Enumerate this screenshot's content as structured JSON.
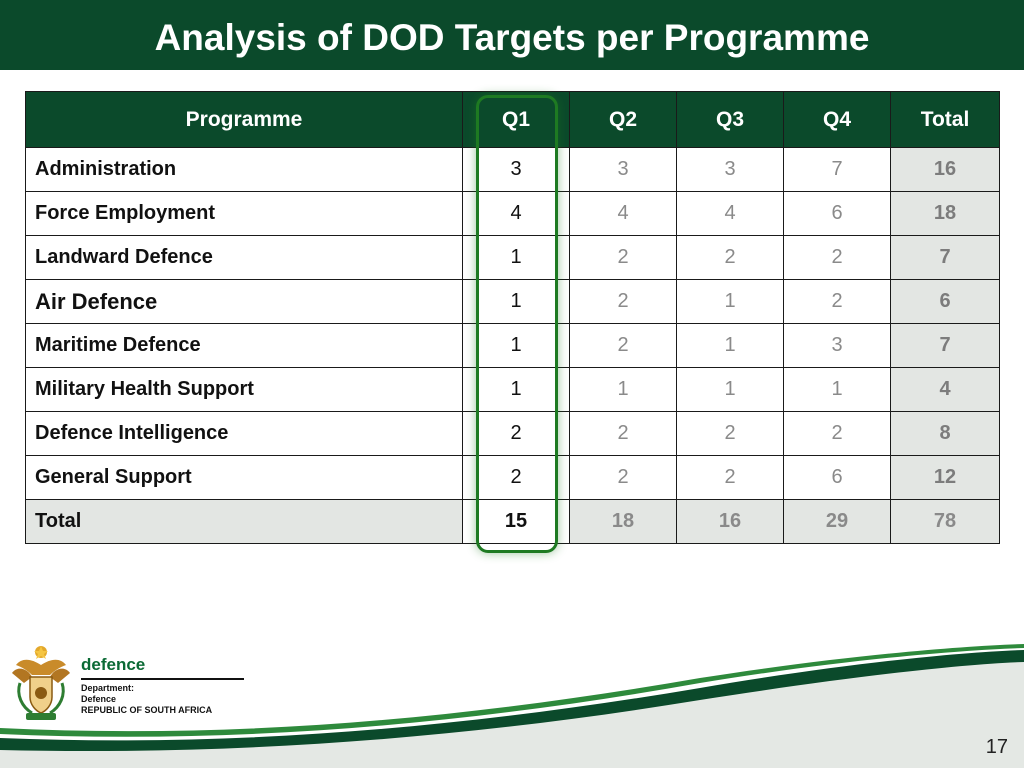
{
  "slide": {
    "title": "Analysis of DOD Targets per Programme",
    "page_number": "17"
  },
  "table": {
    "headers": [
      "Programme",
      "Q1",
      "Q2",
      "Q3",
      "Q4",
      "Total"
    ],
    "rows": [
      {
        "programme": "Administration",
        "q1": "3",
        "q2": "3",
        "q3": "3",
        "q4": "7",
        "total": "16"
      },
      {
        "programme": "Force Employment",
        "q1": "4",
        "q2": "4",
        "q3": "4",
        "q4": "6",
        "total": "18"
      },
      {
        "programme": "Landward Defence",
        "q1": "1",
        "q2": "2",
        "q3": "2",
        "q4": "2",
        "total": "7"
      },
      {
        "programme": "Air Defence",
        "q1": "1",
        "q2": "2",
        "q3": "1",
        "q4": "2",
        "total": "6"
      },
      {
        "programme": "Maritime Defence",
        "q1": "1",
        "q2": "2",
        "q3": "1",
        "q4": "3",
        "total": "7"
      },
      {
        "programme": "Military Health Support",
        "q1": "1",
        "q2": "1",
        "q3": "1",
        "q4": "1",
        "total": "4"
      },
      {
        "programme": "Defence Intelligence",
        "q1": "2",
        "q2": "2",
        "q3": "2",
        "q4": "2",
        "total": "8"
      },
      {
        "programme": "General Support",
        "q1": "2",
        "q2": "2",
        "q3": "2",
        "q4": "6",
        "total": "12"
      }
    ],
    "total_row": {
      "programme": "Total",
      "q1": "15",
      "q2": "18",
      "q3": "16",
      "q4": "29",
      "total": "78"
    },
    "highlighted_column": "Q1"
  },
  "footer": {
    "brand": "defence",
    "department_lines": [
      "Department:",
      "Defence",
      "REPUBLIC OF SOUTH AFRICA"
    ],
    "crest_icon": "coat-of-arms-icon"
  },
  "colors": {
    "primary_green": "#0b4a2b",
    "highlight_green": "#1e7a22",
    "total_cell_gray": "#e3e6e3"
  }
}
